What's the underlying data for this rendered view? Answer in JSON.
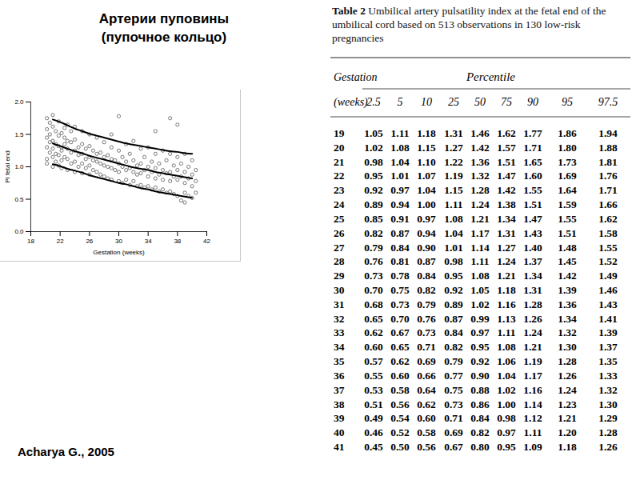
{
  "title": [
    "Артерии пуповины",
    "(пупочное кольцо)"
  ],
  "chart_data": {
    "type": "scatter",
    "xlabel": "Gestation (weeks)",
    "ylabel": "PI fetal end",
    "xlim": [
      18,
      42
    ],
    "xticks": [
      18,
      22,
      26,
      30,
      34,
      38,
      42
    ],
    "ylim": [
      0,
      2
    ],
    "yticks": [
      {
        "value": 0,
        "label": "0.0"
      },
      {
        "value": 0.5,
        "label": "0.5"
      },
      {
        "value": 1,
        "label": "1.0"
      },
      {
        "value": 1.5,
        "label": "1.5"
      },
      {
        "value": 2,
        "label": "2.0"
      }
    ],
    "grid": false,
    "series": [
      {
        "type": "scatter",
        "marker": "circle",
        "color": "#444444",
        "x": [
          20.2,
          20.2,
          20.2,
          20.2,
          20.2,
          20.2,
          20.6,
          20.6,
          20.6,
          20.6,
          21.0,
          21.0,
          21.0,
          21.0,
          21.0,
          21.0,
          21.4,
          21.4,
          21.4,
          21.4,
          21.8,
          21.8,
          21.8,
          21.8,
          21.8,
          22.2,
          22.2,
          22.2,
          22.2,
          22.2,
          22.6,
          22.6,
          22.6,
          22.6,
          23.0,
          23.0,
          23.0,
          23.0,
          23.0,
          23.5,
          23.5,
          23.5,
          23.5,
          24.0,
          24.0,
          24.0,
          24.0,
          24.0,
          24.5,
          24.5,
          24.5,
          25.0,
          25.0,
          25.0,
          25.0,
          25.0,
          25.5,
          25.5,
          25.5,
          26.0,
          26.0,
          26.0,
          26.0,
          26.0,
          26.5,
          26.5,
          26.5,
          27.0,
          27.0,
          27.0,
          27.0,
          27.5,
          27.5,
          27.5,
          28.0,
          28.0,
          28.0,
          28.0,
          28.5,
          28.5,
          28.5,
          29.0,
          29.0,
          29.0,
          29.0,
          29.0,
          29.5,
          29.5,
          30.0,
          30.0,
          30.0,
          30.0,
          30.0,
          30.5,
          30.5,
          30.5,
          31.0,
          31.0,
          31.0,
          31.0,
          31.5,
          31.5,
          31.5,
          32.0,
          32.0,
          32.0,
          32.0,
          32.5,
          32.5,
          32.5,
          33.0,
          33.0,
          33.0,
          33.0,
          33.5,
          33.5,
          33.5,
          34.0,
          34.0,
          34.0,
          34.0,
          34.5,
          34.5,
          34.5,
          35.0,
          35.0,
          35.0,
          35.0,
          35.0,
          35.5,
          35.5,
          35.5,
          36.0,
          36.0,
          36.0,
          36.0,
          36.5,
          36.5,
          36.5,
          37.0,
          37.0,
          37.0,
          37.0,
          37.0,
          37.5,
          37.5,
          37.5,
          38.0,
          38.0,
          38.0,
          38.0,
          38.0,
          38.5,
          38.5,
          38.5,
          39.0,
          39.0,
          39.0,
          39.0,
          39.0,
          39.5,
          39.5,
          39.5,
          40.0,
          40.0,
          40.0,
          40.0,
          40.5,
          40.5,
          40.5
        ],
        "values": [
          1.75,
          1.58,
          1.45,
          1.3,
          1.12,
          1.05,
          1.68,
          1.5,
          1.38,
          1.22,
          1.8,
          1.62,
          1.4,
          1.28,
          1.15,
          1.0,
          1.55,
          1.35,
          1.2,
          1.08,
          1.7,
          1.48,
          1.32,
          1.18,
          1.02,
          1.52,
          1.3,
          1.25,
          1.1,
          0.98,
          1.6,
          1.45,
          1.35,
          1.15,
          1.65,
          1.4,
          1.28,
          1.12,
          0.95,
          1.55,
          1.38,
          1.22,
          1.05,
          1.62,
          1.42,
          1.25,
          1.08,
          0.92,
          1.3,
          1.18,
          1.0,
          1.55,
          1.35,
          1.2,
          1.05,
          0.9,
          1.28,
          1.12,
          0.98,
          1.5,
          1.32,
          1.15,
          1.02,
          0.88,
          1.25,
          1.1,
          0.95,
          1.45,
          1.2,
          1.08,
          0.92,
          1.22,
          1.05,
          0.88,
          1.38,
          1.15,
          1.02,
          0.85,
          1.18,
          1.0,
          0.82,
          1.5,
          1.3,
          1.12,
          0.98,
          0.8,
          1.1,
          0.95,
          1.78,
          1.25,
          1.05,
          0.92,
          0.78,
          1.15,
          1.0,
          0.75,
          1.35,
          1.08,
          0.95,
          0.8,
          1.2,
          0.98,
          0.72,
          1.4,
          1.1,
          0.92,
          0.78,
          1.02,
          0.88,
          0.7,
          1.28,
          1.05,
          0.9,
          0.72,
          1.15,
          0.95,
          0.68,
          1.3,
          1.0,
          0.85,
          0.7,
          1.08,
          0.92,
          0.65,
          1.55,
          1.2,
          0.98,
          0.82,
          0.68,
          1.05,
          0.88,
          0.62,
          1.25,
          0.95,
          0.8,
          0.65,
          1.1,
          0.9,
          0.6,
          1.75,
          1.2,
          0.92,
          0.78,
          0.62,
          1.02,
          0.85,
          0.58,
          1.65,
          1.15,
          0.95,
          0.8,
          0.55,
          1.05,
          0.85,
          0.48,
          1.2,
          0.92,
          0.75,
          0.6,
          0.45,
          1.0,
          0.82,
          0.55,
          1.1,
          0.88,
          0.7,
          0.52,
          0.95,
          0.78,
          0.6
        ]
      },
      {
        "type": "line",
        "color": "#000000",
        "line_style": "solid",
        "x": [
          21,
          22,
          23,
          24,
          25,
          26,
          27,
          28,
          29,
          30,
          31,
          32,
          33,
          34,
          35,
          36,
          37,
          38,
          39,
          40
        ],
        "values": [
          1.04,
          1.01,
          0.97,
          0.94,
          0.91,
          0.87,
          0.84,
          0.81,
          0.78,
          0.75,
          0.73,
          0.7,
          0.67,
          0.65,
          0.62,
          0.6,
          0.58,
          0.56,
          0.54,
          0.52
        ]
      },
      {
        "type": "line",
        "color": "#000000",
        "line_style": "solid",
        "x": [
          21,
          22,
          23,
          24,
          25,
          26,
          27,
          28,
          29,
          30,
          31,
          32,
          33,
          34,
          35,
          36,
          37,
          38,
          39,
          40
        ],
        "values": [
          1.36,
          1.32,
          1.28,
          1.24,
          1.21,
          1.17,
          1.14,
          1.11,
          1.08,
          1.05,
          1.02,
          0.99,
          0.97,
          0.95,
          0.92,
          0.9,
          0.88,
          0.86,
          0.84,
          0.82
        ]
      },
      {
        "type": "line",
        "color": "#000000",
        "line_style": "solid",
        "x": [
          21,
          22,
          23,
          24,
          25,
          26,
          27,
          28,
          29,
          30,
          31,
          32,
          33,
          34,
          35,
          36,
          37,
          38,
          39,
          40
        ],
        "values": [
          1.73,
          1.69,
          1.64,
          1.59,
          1.55,
          1.51,
          1.48,
          1.45,
          1.42,
          1.39,
          1.36,
          1.34,
          1.32,
          1.3,
          1.28,
          1.26,
          1.24,
          1.23,
          1.21,
          1.2
        ]
      }
    ]
  },
  "table": {
    "caption_label": "Table 2",
    "caption": "Umbilical artery pulsatility index at the fetal end of the umbilical cord based on 513 observations in 130 low-risk pregnancies",
    "header": {
      "row_label": [
        "Gestation",
        "(weeks)"
      ],
      "group": "Percentile",
      "columns": [
        "2.5",
        "5",
        "10",
        "25",
        "50",
        "75",
        "90",
        "95",
        "97.5"
      ]
    },
    "rows": [
      [
        "19",
        "1.05",
        "1.11",
        "1.18",
        "1.31",
        "1.46",
        "1.62",
        "1.77",
        "1.86",
        "1.94"
      ],
      [
        "20",
        "1.02",
        "1.08",
        "1.15",
        "1.27",
        "1.42",
        "1.57",
        "1.71",
        "1.80",
        "1.88"
      ],
      [
        "21",
        "0.98",
        "1.04",
        "1.10",
        "1.22",
        "1.36",
        "1.51",
        "1.65",
        "1.73",
        "1.81"
      ],
      [
        "22",
        "0.95",
        "1.01",
        "1.07",
        "1.19",
        "1.32",
        "1.47",
        "1.60",
        "1.69",
        "1.76"
      ],
      [
        "23",
        "0.92",
        "0.97",
        "1.04",
        "1.15",
        "1.28",
        "1.42",
        "1.55",
        "1.64",
        "1.71"
      ],
      [
        "24",
        "0.89",
        "0.94",
        "1.00",
        "1.11",
        "1.24",
        "1.38",
        "1.51",
        "1.59",
        "1.66"
      ],
      [
        "25",
        "0.85",
        "0.91",
        "0.97",
        "1.08",
        "1.21",
        "1.34",
        "1.47",
        "1.55",
        "1.62"
      ],
      [
        "26",
        "0.82",
        "0.87",
        "0.94",
        "1.04",
        "1.17",
        "1.31",
        "1.43",
        "1.51",
        "1.58"
      ],
      [
        "27",
        "0.79",
        "0.84",
        "0.90",
        "1.01",
        "1.14",
        "1.27",
        "1.40",
        "1.48",
        "1.55"
      ],
      [
        "28",
        "0.76",
        "0.81",
        "0.87",
        "0.98",
        "1.11",
        "1.24",
        "1.37",
        "1.45",
        "1.52"
      ],
      [
        "29",
        "0.73",
        "0.78",
        "0.84",
        "0.95",
        "1.08",
        "1.21",
        "1.34",
        "1.42",
        "1.49"
      ],
      [
        "30",
        "0.70",
        "0.75",
        "0.82",
        "0.92",
        "1.05",
        "1.18",
        "1.31",
        "1.39",
        "1.46"
      ],
      [
        "31",
        "0.68",
        "0.73",
        "0.79",
        "0.89",
        "1.02",
        "1.16",
        "1.28",
        "1.36",
        "1.43"
      ],
      [
        "32",
        "0.65",
        "0.70",
        "0.76",
        "0.87",
        "0.99",
        "1.13",
        "1.26",
        "1.34",
        "1.41"
      ],
      [
        "33",
        "0.62",
        "0.67",
        "0.73",
        "0.84",
        "0.97",
        "1.11",
        "1.24",
        "1.32",
        "1.39"
      ],
      [
        "34",
        "0.60",
        "0.65",
        "0.71",
        "0.82",
        "0.95",
        "1.08",
        "1.21",
        "1.30",
        "1.37"
      ],
      [
        "35",
        "0.57",
        "0.62",
        "0.69",
        "0.79",
        "0.92",
        "1.06",
        "1.19",
        "1.28",
        "1.35"
      ],
      [
        "36",
        "0.55",
        "0.60",
        "0.66",
        "0.77",
        "0.90",
        "1.04",
        "1.17",
        "1.26",
        "1.33"
      ],
      [
        "37",
        "0.53",
        "0.58",
        "0.64",
        "0.75",
        "0.88",
        "1.02",
        "1.16",
        "1.24",
        "1.32"
      ],
      [
        "38",
        "0.51",
        "0.56",
        "0.62",
        "0.73",
        "0.86",
        "1.00",
        "1.14",
        "1.23",
        "1.30"
      ],
      [
        "39",
        "0.49",
        "0.54",
        "0.60",
        "0.71",
        "0.84",
        "0.98",
        "1.12",
        "1.21",
        "1.29"
      ],
      [
        "40",
        "0.46",
        "0.52",
        "0.58",
        "0.69",
        "0.82",
        "0.97",
        "1.11",
        "1.20",
        "1.28"
      ],
      [
        "41",
        "0.45",
        "0.50",
        "0.56",
        "0.67",
        "0.80",
        "0.95",
        "1.09",
        "1.18",
        "1.26"
      ]
    ]
  },
  "source": "Acharya G., 2005"
}
